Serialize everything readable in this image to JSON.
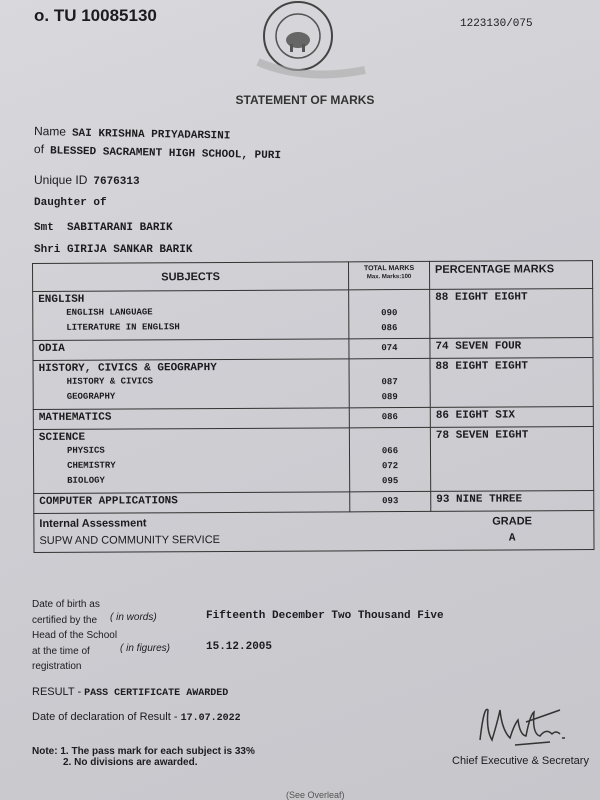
{
  "header": {
    "certificate_no": "o. TU 10085130",
    "serial": "1223130/075",
    "seal_text": "Council for the Indian School Certificate Examinations, New Delhi — Pursuing Excellence in Education since 1958",
    "title": "STATEMENT OF MARKS"
  },
  "candidate": {
    "name_label": "Name",
    "name": "SAI KRISHNA PRIYADARSINI",
    "of_label": "of",
    "school": "BLESSED SACRAMENT HIGH SCHOOL, PURI",
    "uid_label": "Unique ID",
    "uid": "7676313",
    "relation": "Daughter of",
    "mother_label": "Smt",
    "mother": "SABITARANI BARIK",
    "father_label": "Shri",
    "father": "GIRIJA SANKAR BARIK"
  },
  "table": {
    "headers": {
      "subjects": "SUBJECTS",
      "total": "TOTAL MARKS",
      "max": "Max. Marks:100",
      "percentage": "PERCENTAGE MARKS"
    },
    "rows": [
      {
        "subject": "ENGLISH",
        "marks": "",
        "percentage": "88 EIGHT EIGHT",
        "components": [
          {
            "name": "ENGLISH LANGUAGE",
            "marks": "090"
          },
          {
            "name": "LITERATURE IN ENGLISH",
            "marks": "086"
          }
        ]
      },
      {
        "subject": "ODIA",
        "marks": "074",
        "percentage": "74 SEVEN FOUR",
        "components": []
      },
      {
        "subject": "HISTORY, CIVICS & GEOGRAPHY",
        "marks": "",
        "percentage": "88 EIGHT EIGHT",
        "components": [
          {
            "name": "HISTORY & CIVICS",
            "marks": "087"
          },
          {
            "name": "GEOGRAPHY",
            "marks": "089"
          }
        ]
      },
      {
        "subject": "MATHEMATICS",
        "marks": "086",
        "percentage": "86 EIGHT SIX",
        "components": []
      },
      {
        "subject": "SCIENCE",
        "marks": "",
        "percentage": "78 SEVEN EIGHT",
        "components": [
          {
            "name": "PHYSICS",
            "marks": "066"
          },
          {
            "name": "CHEMISTRY",
            "marks": "072"
          },
          {
            "name": "BIOLOGY",
            "marks": "095"
          }
        ]
      },
      {
        "subject": "COMPUTER APPLICATIONS",
        "marks": "093",
        "percentage": "93 NINE THREE",
        "components": []
      }
    ],
    "internal": {
      "label": "Internal Assessment",
      "grade_label": "GRADE",
      "subject": "SUPW AND COMMUNITY SERVICE",
      "grade": "A"
    }
  },
  "dob": {
    "l1": "Date of birth as",
    "l2": "certified by the",
    "l3": "Head of the School",
    "l4": "at the time of",
    "l5": "registration",
    "words_label": "( in words)",
    "words": "Fifteenth December Two Thousand Five",
    "figures_label": "( in figures)",
    "figures": "15.12.2005"
  },
  "result": {
    "label": "RESULT -",
    "value": "PASS CERTIFICATE AWARDED",
    "decl_label": "Date of declaration of Result -",
    "decl_date": "17.07.2022"
  },
  "notes": {
    "label": "Note:",
    "n1": "1. The pass mark for each subject is 33%",
    "n2": "2. No divisions are awarded."
  },
  "signature": {
    "title": "Chief Executive & Secretary"
  },
  "footer": {
    "overleaf": "(See Overleaf)"
  }
}
